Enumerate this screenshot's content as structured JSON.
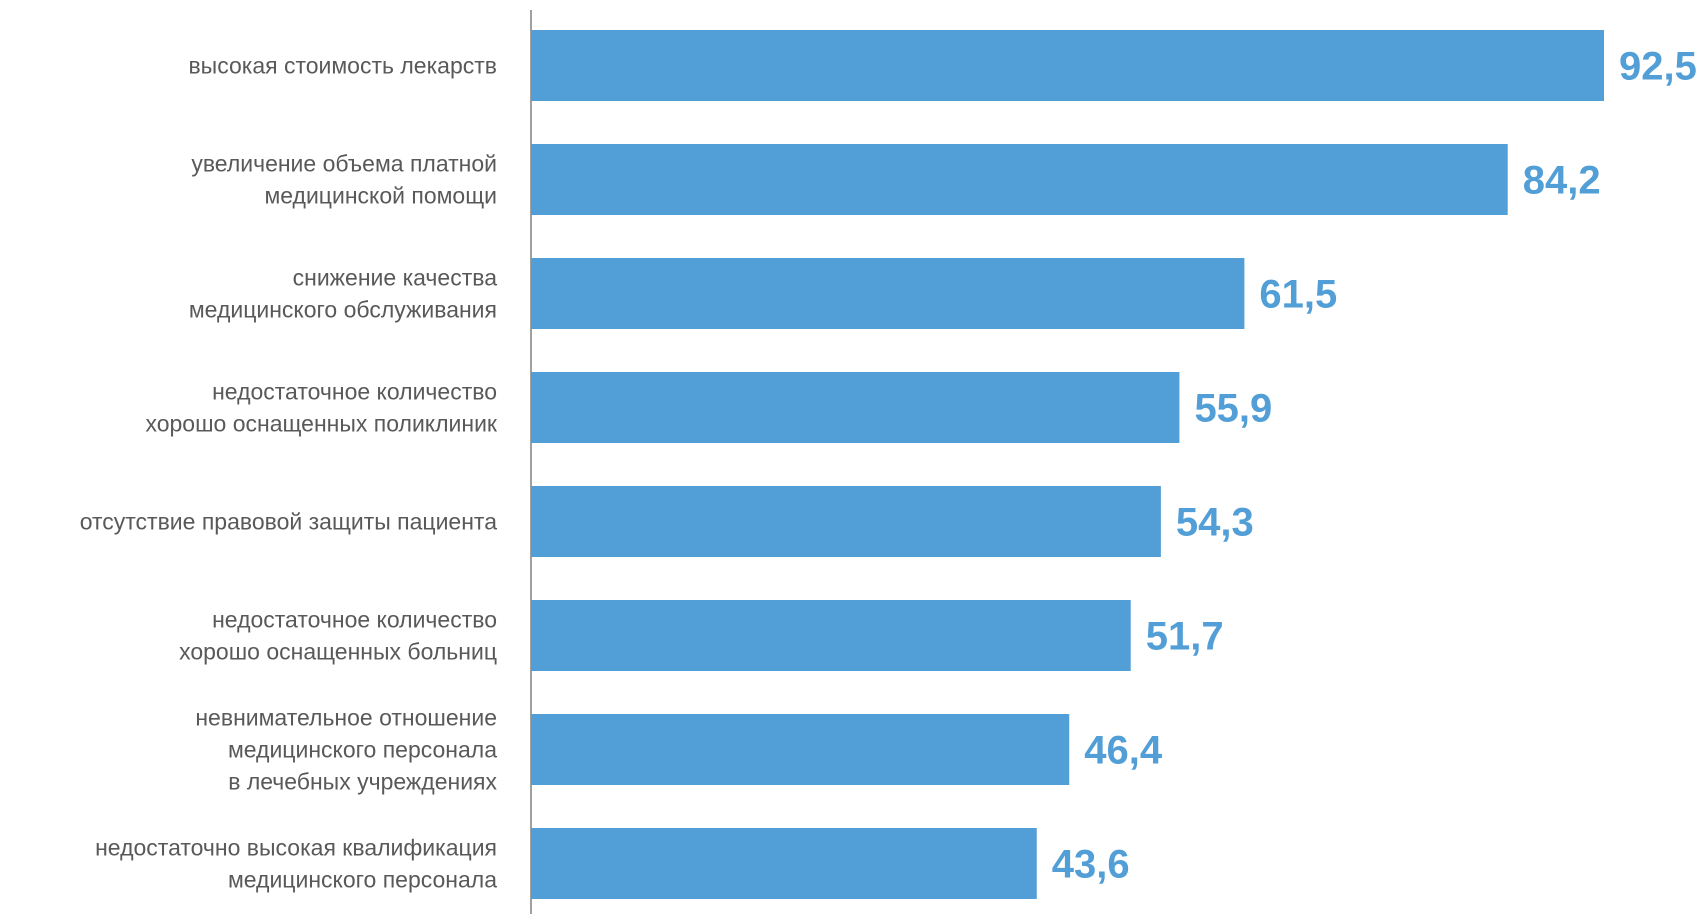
{
  "chart_data": {
    "type": "bar",
    "orientation": "horizontal",
    "categories": [
      [
        "высокая стоимость лекарств"
      ],
      [
        "увеличение объема платной",
        "медицинской помощи"
      ],
      [
        "снижение качества",
        "медицинского обслуживания"
      ],
      [
        "недостаточное количество",
        "хорошо оснащенных поликлиник"
      ],
      [
        "отсутствие правовой защиты пациента"
      ],
      [
        "недостаточное количество",
        "хорошо оснащенных больниц"
      ],
      [
        "невнимательное отношение",
        "медицинского персонала",
        "в лечебных учреждениях"
      ],
      [
        "недостаточно высокая квалификация",
        "медицинского персонала"
      ]
    ],
    "values": [
      92.5,
      84.2,
      61.5,
      55.9,
      54.3,
      51.7,
      46.4,
      43.6
    ],
    "value_labels": [
      "92,5",
      "84,2",
      "61,5",
      "55,9",
      "54,3",
      "51,7",
      "46,4",
      "43,6"
    ],
    "title": "",
    "xlabel": "",
    "ylabel": "",
    "xlim": [
      0,
      100
    ],
    "grid": false,
    "legend": "none",
    "colors": {
      "bar": "#529ED6",
      "value_label": "#529ED6",
      "category_label": "#595959",
      "axis": "#808080"
    }
  }
}
